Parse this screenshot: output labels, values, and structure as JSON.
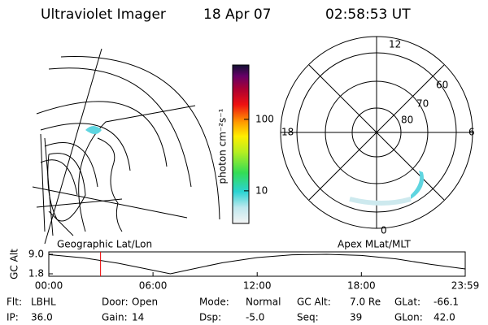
{
  "header": {
    "title": "Ultraviolet Imager",
    "date": "18 Apr 07",
    "time": "02:58:53 UT"
  },
  "colorbar": {
    "label": "photon cm⁻²s⁻¹",
    "scale": "log",
    "ylim": [
      3.5,
      575
    ],
    "yticks": [
      10,
      100
    ]
  },
  "map_panel": {
    "caption": "Geographic Lat/Lon"
  },
  "polar_panel": {
    "caption": "Apex MLat/MLT",
    "mlt_labels": [
      "12",
      "6",
      "0",
      "18"
    ],
    "mlat_labels": [
      "60",
      "70",
      "80"
    ]
  },
  "altitude_plot": {
    "ylabel": "GC Alt",
    "ylim": [
      0.9,
      9.9
    ],
    "yticks": [
      1.8,
      {
        "value": 9.0,
        "label": "9.0"
      }
    ],
    "xlim": [
      0,
      23.98
    ],
    "xticks": [
      {
        "value": 0,
        "label": "00:00"
      },
      {
        "value": 6,
        "label": "06:00"
      },
      {
        "value": 12,
        "label": "12:00"
      },
      {
        "value": 18,
        "label": "18:00"
      },
      {
        "value": 23.98,
        "label": "23:59"
      }
    ],
    "x": [
      0,
      2,
      4,
      6,
      7,
      8,
      10,
      12,
      14,
      16,
      18,
      20,
      22,
      23.98
    ],
    "values": [
      8.9,
      7.7,
      5.7,
      3.1,
      1.8,
      3.2,
      5.9,
      7.8,
      8.8,
      9.0,
      8.6,
      7.3,
      5.3,
      3.6
    ],
    "current_time": 2.98
  },
  "info": [
    [
      "Flt:",
      "LBHL"
    ],
    [
      "Door:",
      "Open"
    ],
    [
      "Mode:",
      "Normal"
    ],
    [
      "GC Alt:",
      "7.0 Re"
    ],
    [
      "GLat:",
      "-66.1"
    ],
    [
      "IP:",
      "36.0"
    ],
    [
      "Gain:",
      "14"
    ],
    [
      "Dsp:",
      "-5.0"
    ],
    [
      "Seq:",
      "39"
    ],
    [
      "GLon:",
      "42.0"
    ]
  ]
}
